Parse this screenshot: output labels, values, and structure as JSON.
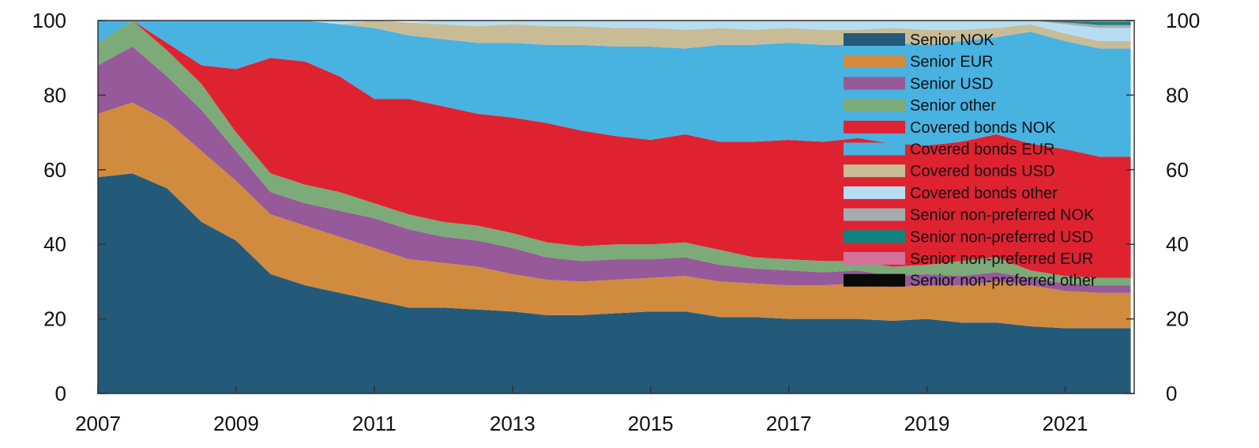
{
  "chart_data": {
    "type": "area",
    "stacked": true,
    "title": "",
    "xlabel": "",
    "ylabel": "",
    "xlim": [
      2007,
      2022
    ],
    "ylim": [
      0,
      100
    ],
    "x_ticks": [
      "2007",
      "2009",
      "2011",
      "2013",
      "2015",
      "2017",
      "2019",
      "2021"
    ],
    "y_ticks": [
      "0",
      "20",
      "40",
      "60",
      "80",
      "100"
    ],
    "y_axis_right_ticks": [
      "0",
      "20",
      "40",
      "60",
      "80",
      "100"
    ],
    "grid": false,
    "legend_position": "top-right",
    "x": [
      2007.0,
      2007.5,
      2008.0,
      2008.5,
      2009.0,
      2009.5,
      2010.0,
      2010.5,
      2011.0,
      2011.5,
      2012.0,
      2012.5,
      2013.0,
      2013.5,
      2014.0,
      2014.5,
      2015.0,
      2015.5,
      2016.0,
      2016.5,
      2017.0,
      2017.5,
      2018.0,
      2018.5,
      2019.0,
      2019.5,
      2020.0,
      2020.5,
      2021.0,
      2021.5,
      2021.95
    ],
    "series": [
      {
        "name": "Senior NOK",
        "color": "#235A7A",
        "values": [
          58,
          59,
          55,
          46,
          41,
          32,
          29,
          27,
          25,
          23,
          23,
          22.5,
          22,
          21,
          21,
          21.5,
          22,
          22,
          20.5,
          20.5,
          20,
          20,
          20,
          19.5,
          20,
          19,
          19,
          18,
          17.5,
          17.5,
          17.5
        ]
      },
      {
        "name": "Senior EUR",
        "color": "#D08B3E",
        "values": [
          17,
          19,
          18,
          19,
          16,
          16,
          16,
          15,
          14,
          13,
          12,
          11.5,
          10,
          9.5,
          9,
          9,
          9,
          9.5,
          9.5,
          9,
          9,
          9,
          9.5,
          9,
          9,
          10,
          11,
          11,
          10,
          9.5,
          9.5
        ]
      },
      {
        "name": "Senior USD",
        "color": "#965A9A",
        "values": [
          13,
          15,
          12,
          11,
          8,
          6,
          6,
          7,
          8,
          8,
          7,
          7,
          7,
          6,
          5.5,
          5.5,
          5,
          5,
          4.5,
          4,
          4,
          3.5,
          3.5,
          3,
          3,
          2.5,
          2.5,
          2,
          2,
          2,
          2
        ]
      },
      {
        "name": "Senior other",
        "color": "#7CAA78",
        "values": [
          6,
          7,
          7,
          7,
          5,
          5,
          5,
          5,
          4,
          4,
          4,
          4,
          4,
          4,
          4,
          4,
          4,
          4,
          4,
          3,
          3,
          3,
          2.5,
          2.5,
          2.5,
          4,
          4,
          2,
          2,
          2,
          2
        ]
      },
      {
        "name": "Covered bonds NOK",
        "color": "#DF2230",
        "values": [
          0,
          0,
          2,
          5,
          17,
          31,
          33,
          31,
          28,
          31,
          31,
          30,
          31,
          32,
          31,
          29,
          28,
          29,
          29,
          31,
          32,
          32,
          33,
          33,
          32,
          32,
          33,
          34,
          34,
          32.5,
          32.5
        ]
      },
      {
        "name": "Covered bonds EUR",
        "color": "#48B2E1",
        "values": [
          6,
          0,
          6,
          12,
          13,
          10,
          11,
          14,
          19,
          17,
          18,
          19,
          20,
          21,
          23,
          24,
          25,
          23,
          26,
          26,
          26,
          26,
          25,
          27,
          27,
          27,
          26,
          30,
          29,
          29,
          29
        ]
      },
      {
        "name": "Covered bonds USD",
        "color": "#C8BC97",
        "values": [
          0,
          0,
          0,
          0,
          0,
          0,
          0,
          0,
          2,
          3.5,
          4,
          4.5,
          5,
          5,
          5,
          5,
          5,
          5,
          4.5,
          4,
          4,
          4,
          4,
          4,
          4,
          3,
          2.5,
          2,
          2,
          2,
          2
        ]
      },
      {
        "name": "Covered bonds other",
        "color": "#B7DDF2",
        "values": [
          0,
          0,
          0,
          0,
          0,
          0,
          0,
          1,
          0,
          0,
          1,
          1.5,
          1,
          1.5,
          1.5,
          2,
          2,
          2.5,
          2,
          2.5,
          2,
          2.5,
          2.5,
          2,
          2.5,
          2.5,
          2,
          1,
          2.5,
          3.5,
          3.5
        ]
      },
      {
        "name": "Senior non-preferred NOK",
        "color": "#A7ABAE",
        "values": [
          0,
          0,
          0,
          0,
          0,
          0,
          0,
          0,
          0,
          0,
          0,
          0,
          0,
          0,
          0,
          0,
          0,
          0,
          0,
          0,
          0,
          0,
          0,
          0,
          0,
          0,
          0,
          0,
          0.5,
          0.8,
          0.8
        ]
      },
      {
        "name": "Senior non-preferred USD",
        "color": "#0F837E",
        "values": [
          0,
          0,
          0,
          0,
          0,
          0,
          0,
          0,
          0,
          0,
          0,
          0,
          0,
          0,
          0,
          0,
          0,
          0,
          0,
          0,
          0,
          0,
          0,
          0,
          0,
          0,
          0,
          0,
          0.3,
          0.8,
          0.8
        ]
      },
      {
        "name": "Senior non-preferred EUR",
        "color": "#D5709A",
        "values": [
          0,
          0,
          0,
          0,
          0,
          0,
          0,
          0,
          0,
          0,
          0,
          0,
          0,
          0,
          0,
          0,
          0,
          0,
          0,
          0,
          0,
          0,
          0,
          0,
          0,
          0,
          0,
          0,
          0.2,
          0.4,
          0.4
        ]
      },
      {
        "name": "Senior non-preferred other",
        "color": "#0A0A0A",
        "values": [
          0,
          0,
          0,
          0,
          0,
          0,
          0,
          0,
          0,
          0,
          0,
          0,
          0,
          0,
          0,
          0,
          0,
          0,
          0,
          0,
          0,
          0,
          0,
          0,
          0,
          0,
          0,
          0,
          0,
          0.2,
          0.2
        ]
      }
    ]
  }
}
